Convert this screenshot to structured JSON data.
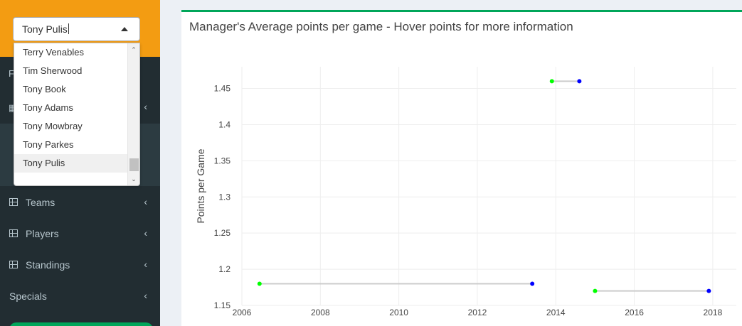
{
  "sidebar": {
    "select": {
      "value": "Tony Pulis"
    },
    "dropdown": {
      "items": [
        "Terry Venables",
        "Tim Sherwood",
        "Tony Book",
        "Tony Adams",
        "Tony Mowbray",
        "Tony Parkes",
        "Tony Pulis"
      ],
      "selected": "Tony Pulis"
    },
    "menu": [
      {
        "label": "Teams",
        "icon": "table-icon"
      },
      {
        "label": "Players",
        "icon": "table-icon"
      },
      {
        "label": "Standings",
        "icon": "table-icon"
      },
      {
        "label": "Specials",
        "icon": ""
      }
    ],
    "colors": {
      "header": "#f39c12",
      "bg": "#222d32",
      "active_bg": "#2c3b41",
      "text": "#b8c7ce",
      "button": "#00a65a"
    }
  },
  "main": {
    "title": "Manager's Average points per game - Hover points for more information",
    "accent": "#00a65a"
  },
  "chart_data": {
    "type": "scatter",
    "title": "",
    "xlabel": "",
    "ylabel": "Points per Game",
    "xlim": [
      2006,
      2018.6
    ],
    "ylim": [
      1.15,
      1.48
    ],
    "xticks": [
      2006,
      2008,
      2010,
      2012,
      2014,
      2016,
      2018
    ],
    "yticks": [
      1.15,
      1.2,
      1.25,
      1.3,
      1.35,
      1.4,
      1.45
    ],
    "yticklabels": [
      "1.15",
      "1.2",
      "1.25",
      "1.3",
      "1.35",
      "1.4",
      "1.45"
    ],
    "grid": true,
    "colors": {
      "start": "#00ff00",
      "end": "#0000ff",
      "connector": "#cccccc"
    },
    "segments": [
      {
        "start_x": 2006.45,
        "end_x": 2013.4,
        "y": 1.18
      },
      {
        "start_x": 2013.9,
        "end_x": 2014.6,
        "y": 1.46
      },
      {
        "start_x": 2015.0,
        "end_x": 2017.9,
        "y": 1.17
      }
    ]
  }
}
